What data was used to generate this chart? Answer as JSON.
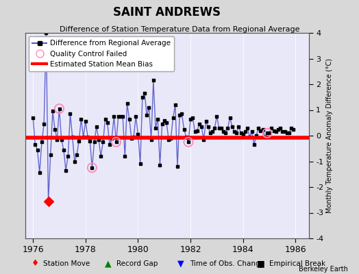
{
  "title": "SAINT ANDREWS",
  "subtitle": "Difference of Station Temperature Data from Regional Average",
  "ylabel_right": "Monthly Temperature Anomaly Difference (°C)",
  "x_start": 1976.0,
  "ylim": [
    -4,
    4
  ],
  "mean_bias": -0.08,
  "background_color": "#d8d8d8",
  "plot_bg_color": "#e8e8f8",
  "line_color": "#5555cc",
  "marker_color": "#000000",
  "bias_line_color": "#ff0000",
  "qc_fail_color": "#ff88bb",
  "berkeley_earth_text": "Berkeley Earth",
  "y_values": [
    0.7,
    -0.35,
    -0.55,
    -1.45,
    -0.25,
    0.45,
    4.0,
    -2.55,
    -0.75,
    0.95,
    0.25,
    -0.15,
    1.05,
    -0.15,
    -0.55,
    -1.35,
    -0.8,
    0.85,
    -0.05,
    -1.0,
    -0.75,
    -0.2,
    0.65,
    -0.05,
    0.55,
    -0.05,
    -0.2,
    -1.25,
    -0.25,
    0.35,
    -0.15,
    -0.8,
    -0.25,
    0.65,
    0.5,
    -0.35,
    -0.1,
    0.75,
    -0.25,
    0.75,
    0.75,
    0.75,
    -0.8,
    1.25,
    0.65,
    -0.1,
    -0.05,
    0.75,
    0.05,
    -1.1,
    1.5,
    1.65,
    0.8,
    1.1,
    -0.15,
    2.15,
    0.3,
    0.65,
    -1.15,
    0.45,
    0.6,
    0.5,
    -0.15,
    -0.1,
    0.7,
    1.2,
    -1.2,
    0.8,
    0.85,
    0.25,
    -0.05,
    -0.25,
    0.65,
    0.7,
    0.15,
    0.2,
    0.45,
    0.35,
    -0.15,
    0.55,
    0.35,
    0.1,
    0.15,
    0.3,
    0.75,
    0.3,
    0.3,
    0.15,
    0.1,
    0.3,
    0.7,
    0.35,
    0.15,
    0.1,
    0.35,
    0.1,
    0.05,
    0.15,
    0.3,
    -0.05,
    0.15,
    -0.35,
    0.0,
    0.3,
    0.2,
    0.25,
    -0.05,
    0.1,
    0.1,
    0.3,
    0.2,
    0.15,
    0.25,
    0.3,
    0.15,
    0.15,
    0.1,
    0.1,
    0.3,
    0.25
  ],
  "qc_fail_indices": [
    12,
    27,
    38,
    71,
    107
  ],
  "station_move_indices": [
    7
  ],
  "xticks": [
    1976,
    1978,
    1980,
    1982,
    1984,
    1986
  ],
  "yticks": [
    -4,
    -3,
    -2,
    -1,
    0,
    1,
    2,
    3,
    4
  ]
}
